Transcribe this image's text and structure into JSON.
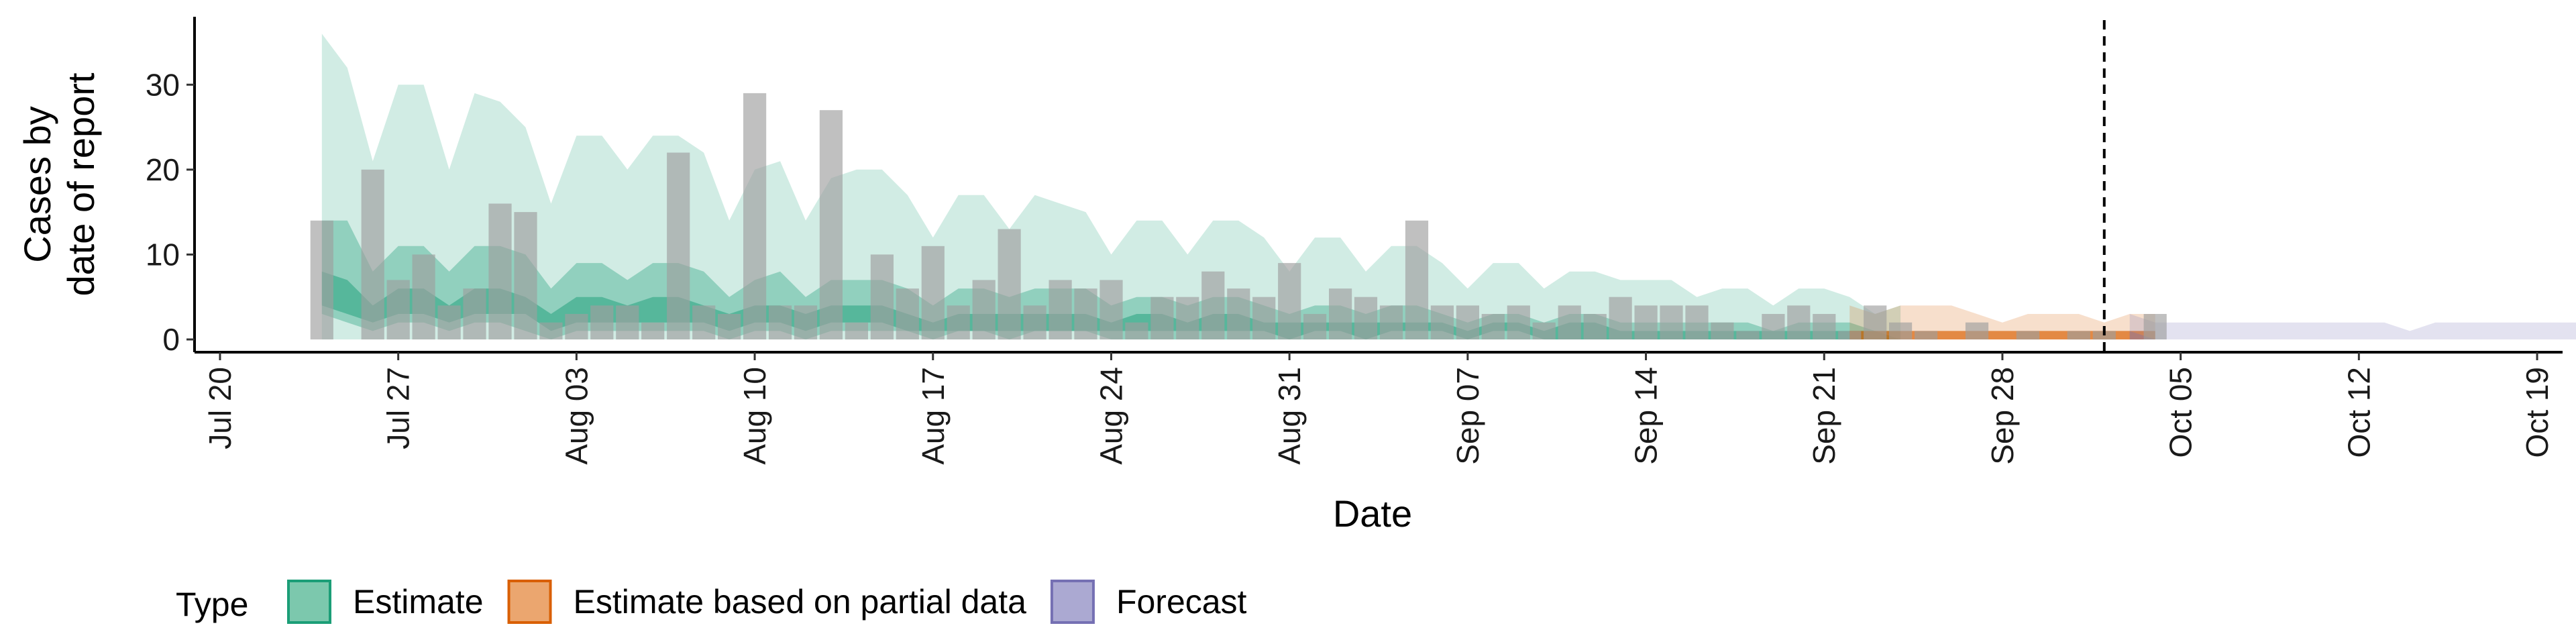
{
  "chart_data": {
    "type": "area",
    "xlabel": "Date",
    "ylabel": [
      "Cases by",
      "date of report"
    ],
    "x_range": [
      "2020-07-19",
      "2020-10-20"
    ],
    "ylim": [
      -1.5,
      38
    ],
    "y_ticks": [
      0,
      10,
      20,
      30
    ],
    "x_ticks": [
      {
        "date": "2020-07-20",
        "label": "Jul 20"
      },
      {
        "date": "2020-07-27",
        "label": "Jul 27"
      },
      {
        "date": "2020-08-03",
        "label": "Aug 03"
      },
      {
        "date": "2020-08-10",
        "label": "Aug 10"
      },
      {
        "date": "2020-08-17",
        "label": "Aug 17"
      },
      {
        "date": "2020-08-24",
        "label": "Aug 24"
      },
      {
        "date": "2020-08-31",
        "label": "Aug 31"
      },
      {
        "date": "2020-09-07",
        "label": "Sep 07"
      },
      {
        "date": "2020-09-14",
        "label": "Sep 14"
      },
      {
        "date": "2020-09-21",
        "label": "Sep 21"
      },
      {
        "date": "2020-09-28",
        "label": "Sep 28"
      },
      {
        "date": "2020-10-05",
        "label": "Oct 05"
      },
      {
        "date": "2020-10-12",
        "label": "Oct 12"
      },
      {
        "date": "2020-10-19",
        "label": "Oct 19"
      }
    ],
    "vline_date": "2020-10-02",
    "bar_color": "#9e9e9e",
    "grid": false,
    "legend": {
      "title": "Type",
      "position": "bottom",
      "items": [
        {
          "label": "Estimate",
          "fill": "#7cc8ad",
          "stroke": "#1b9e77"
        },
        {
          "label": "Estimate based on partial data",
          "fill": "#eba66f",
          "stroke": "#d95f02"
        },
        {
          "label": "Forecast",
          "fill": "#aba9d2",
          "stroke": "#7570b3"
        }
      ]
    },
    "reported_cases": {
      "start": "2020-07-24",
      "values": [
        14,
        0,
        20,
        7,
        10,
        4,
        6,
        16,
        15,
        2,
        3,
        4,
        4,
        2,
        22,
        4,
        3,
        29,
        4,
        4,
        27,
        2,
        10,
        6,
        11,
        4,
        7,
        13,
        4,
        7,
        6,
        7,
        2,
        5,
        5,
        8,
        6,
        5,
        9,
        3,
        6,
        5,
        4,
        14,
        4,
        4,
        3,
        4,
        2,
        4,
        3,
        5,
        4,
        4,
        4,
        2,
        1,
        3,
        4,
        3,
        1,
        4,
        2,
        1,
        0,
        2,
        0,
        1,
        0,
        1,
        1,
        0,
        3
      ]
    },
    "series": [
      {
        "name": "Estimate",
        "start": "2020-07-24",
        "color": "#1b9e77",
        "bands": {
          "outer": {
            "upper": [
              36,
              32,
              21,
              30,
              30,
              20,
              29,
              28,
              25,
              16,
              24,
              24,
              20,
              24,
              24,
              22,
              14,
              20,
              21,
              14,
              19,
              20,
              20,
              17,
              12,
              17,
              17,
              13,
              17,
              16,
              15,
              10,
              14,
              14,
              10,
              14,
              14,
              12,
              8,
              12,
              12,
              8,
              11,
              11,
              9,
              6,
              9,
              9,
              6,
              8,
              8,
              7,
              7,
              7,
              5,
              6,
              6,
              4,
              6,
              6,
              5,
              3,
              4
            ],
            "lower": [
              0,
              0,
              0,
              0,
              0,
              0,
              0,
              0,
              0,
              0,
              0,
              0,
              0,
              0,
              0,
              0,
              0,
              0,
              0,
              0,
              0,
              0,
              0,
              0,
              0,
              0,
              0,
              0,
              0,
              0,
              0,
              0,
              0,
              0,
              0,
              0,
              0,
              0,
              0,
              0,
              0,
              0,
              0,
              0,
              0,
              0,
              0,
              0,
              0,
              0,
              0,
              0,
              0,
              0,
              0,
              0,
              0,
              0,
              0,
              0,
              0,
              0,
              0
            ]
          },
          "middle": {
            "upper": [
              14,
              14,
              8,
              11,
              11,
              8,
              11,
              11,
              10,
              6,
              9,
              9,
              7,
              9,
              9,
              8,
              5,
              7,
              8,
              5,
              7,
              7,
              7,
              6,
              4,
              6,
              6,
              5,
              6,
              6,
              6,
              4,
              5,
              5,
              4,
              5,
              5,
              4,
              3,
              4,
              4,
              3,
              4,
              4,
              3,
              2,
              3,
              3,
              2,
              3,
              3,
              2,
              2,
              2,
              2,
              2,
              2,
              1,
              2,
              2,
              2,
              1,
              1
            ],
            "lower": [
              3,
              2,
              1,
              2,
              2,
              1,
              2,
              2,
              1,
              0,
              1,
              1,
              1,
              1,
              1,
              1,
              0,
              1,
              1,
              0,
              1,
              1,
              1,
              1,
              0,
              1,
              1,
              0,
              1,
              1,
              1,
              0,
              0,
              0,
              0,
              0,
              0,
              0,
              0,
              0,
              0,
              0,
              0,
              0,
              0,
              0,
              0,
              0,
              0,
              0,
              0,
              0,
              0,
              0,
              0,
              0,
              0,
              0,
              0,
              0,
              0,
              0,
              0
            ]
          },
          "inner": {
            "upper": [
              8,
              7,
              4,
              6,
              6,
              4,
              6,
              6,
              5,
              3,
              5,
              5,
              4,
              5,
              5,
              4,
              3,
              4,
              4,
              3,
              4,
              4,
              4,
              3,
              2,
              3,
              3,
              3,
              3,
              3,
              3,
              2,
              3,
              3,
              2,
              3,
              3,
              2,
              2,
              2,
              2,
              2,
              2,
              2,
              2,
              1,
              2,
              2,
              1,
              2,
              2,
              1,
              1,
              1,
              1,
              1,
              1,
              1,
              1,
              1,
              1,
              1,
              0
            ],
            "lower": [
              4,
              3,
              2,
              3,
              3,
              2,
              3,
              3,
              3,
              1,
              2,
              2,
              2,
              2,
              2,
              2,
              1,
              2,
              2,
              1,
              2,
              2,
              2,
              1,
              1,
              1,
              1,
              1,
              1,
              1,
              1,
              1,
              1,
              1,
              1,
              1,
              1,
              1,
              0,
              1,
              1,
              0,
              1,
              1,
              1,
              0,
              1,
              1,
              0,
              0,
              0,
              0,
              0,
              0,
              0,
              0,
              0,
              0,
              0,
              0,
              0,
              0,
              0
            ]
          }
        }
      },
      {
        "name": "Estimate based on partial data",
        "start": "2020-09-22",
        "color": "#d95f02",
        "bands": {
          "outer": {
            "upper": [
              4,
              3,
              4,
              4,
              4,
              3,
              2,
              3,
              3,
              3,
              2,
              3,
              3
            ],
            "lower": [
              0,
              0,
              0,
              0,
              0,
              0,
              0,
              0,
              0,
              0,
              0,
              0,
              0
            ]
          },
          "middle": {
            "upper": [
              1,
              1,
              1,
              1,
              1,
              1,
              1,
              1,
              1,
              1,
              1,
              1,
              1
            ],
            "lower": [
              0,
              0,
              0,
              0,
              0,
              0,
              0,
              0,
              0,
              0,
              0,
              0,
              0
            ]
          },
          "inner": {
            "upper": [
              1,
              1,
              1,
              1,
              1,
              1,
              1,
              1,
              1,
              1,
              1,
              1,
              1
            ],
            "lower": [
              0,
              0,
              0,
              0,
              0,
              0,
              0,
              0,
              0,
              0,
              0,
              0,
              0
            ]
          }
        }
      },
      {
        "name": "Forecast",
        "start": "2020-10-03",
        "color": "#7570b3",
        "bands": {
          "outer": {
            "upper": [
              3,
              2,
              2,
              2,
              2,
              2,
              2,
              2,
              2,
              2,
              2,
              1,
              2,
              2,
              2,
              2,
              2,
              2,
              2
            ],
            "lower": [
              0,
              0,
              0,
              0,
              0,
              0,
              0,
              0,
              0,
              0,
              0,
              0,
              0,
              0,
              0,
              0,
              0,
              0,
              0
            ]
          },
          "middle": {
            "upper": [
              1,
              0,
              0,
              0,
              0,
              0,
              0,
              0,
              0,
              0,
              0,
              0,
              0,
              0,
              0,
              0,
              0,
              0,
              0
            ],
            "lower": [
              0,
              0,
              0,
              0,
              0,
              0,
              0,
              0,
              0,
              0,
              0,
              0,
              0,
              0,
              0,
              0,
              0,
              0,
              0
            ]
          },
          "inner": {
            "upper": [
              0,
              0,
              0,
              0,
              0,
              0,
              0,
              0,
              0,
              0,
              0,
              0,
              0,
              0,
              0,
              0,
              0,
              0,
              0
            ],
            "lower": [
              0,
              0,
              0,
              0,
              0,
              0,
              0,
              0,
              0,
              0,
              0,
              0,
              0,
              0,
              0,
              0,
              0,
              0,
              0
            ]
          }
        }
      }
    ]
  }
}
